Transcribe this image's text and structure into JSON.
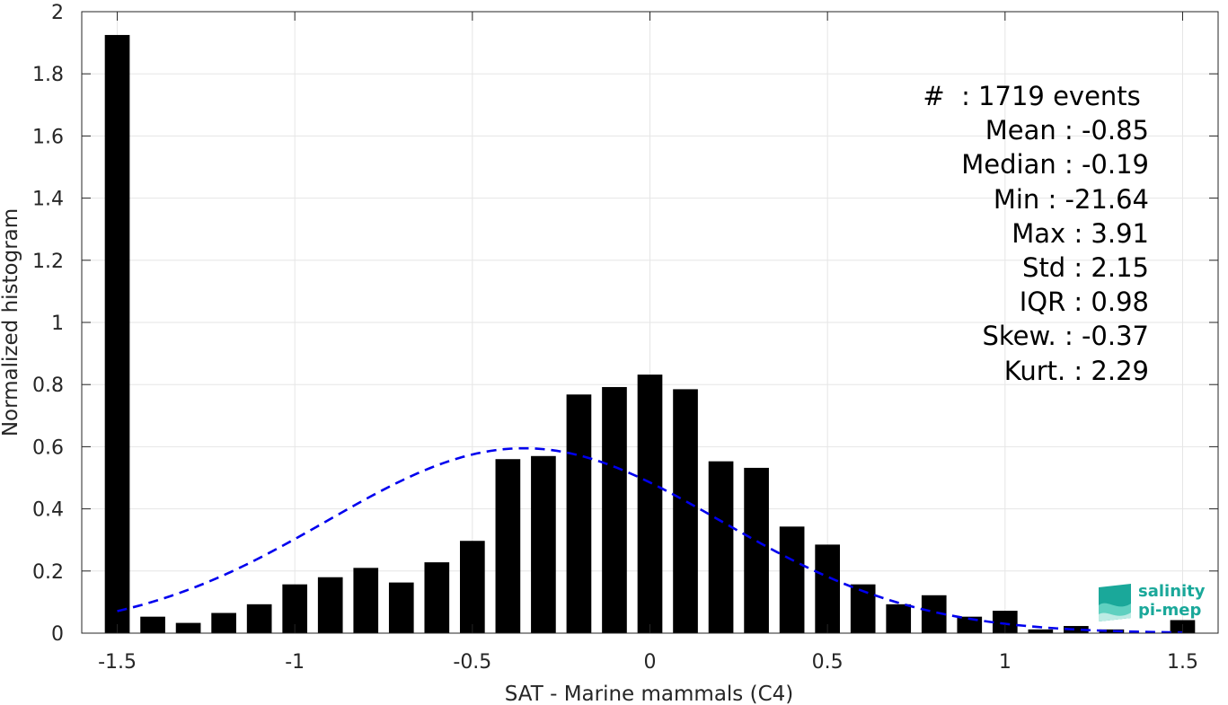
{
  "chart_data": {
    "type": "bar",
    "xlabel": "SAT - Marine mammals (C4)",
    "ylabel": "Normalized histogram",
    "xlim": [
      -1.6,
      1.6
    ],
    "ylim": [
      0,
      2
    ],
    "xticks": [
      -1.5,
      -1,
      -0.5,
      0,
      0.5,
      1,
      1.5
    ],
    "xtick_labels": [
      "-1.5",
      "-1",
      "-0.5",
      "0",
      "0.5",
      "1",
      "1.5"
    ],
    "yticks": [
      0,
      0.2,
      0.4,
      0.6,
      0.8,
      1,
      1.2,
      1.4,
      1.6,
      1.8,
      2
    ],
    "ytick_labels": [
      "0",
      "0.2",
      "0.4",
      "0.6",
      "0.8",
      "1",
      "1.2",
      "1.4",
      "1.6",
      "1.8",
      "2"
    ],
    "grid": true,
    "bar_width": 0.07,
    "bar_color": "#000000",
    "x": [
      -1.5,
      -1.4,
      -1.3,
      -1.2,
      -1.1,
      -1.0,
      -0.9,
      -0.8,
      -0.7,
      -0.6,
      -0.5,
      -0.4,
      -0.3,
      -0.2,
      -0.1,
      0.0,
      0.1,
      0.2,
      0.3,
      0.4,
      0.5,
      0.6,
      0.7,
      0.8,
      0.9,
      1.0,
      1.1,
      1.2,
      1.3,
      1.5
    ],
    "values": [
      1.925,
      0.053,
      0.033,
      0.065,
      0.093,
      0.157,
      0.18,
      0.21,
      0.163,
      0.228,
      0.297,
      0.56,
      0.57,
      0.768,
      0.792,
      0.832,
      0.785,
      0.553,
      0.532,
      0.343,
      0.285,
      0.157,
      0.093,
      0.122,
      0.053,
      0.072,
      0.012,
      0.023,
      0.012,
      0.042
    ],
    "fit_curve": {
      "type": "gaussian",
      "mean": -0.355,
      "std": 0.555,
      "peak": 0.595,
      "x_range": [
        -1.5,
        1.5
      ],
      "color": "#0000ee",
      "style": "dashed"
    }
  },
  "stats": [
    "#  : 1719 events ",
    "Mean : -0.85",
    "Median : -0.19",
    "Min : -21.64",
    "Max : 3.91",
    "Std : 2.15",
    "IQR : 0.98",
    "Skew. : -0.37",
    "Kurt. : 2.29"
  ],
  "logo": {
    "line1": "salinity",
    "line2": "pi-mep",
    "color": "#1aa89a"
  }
}
